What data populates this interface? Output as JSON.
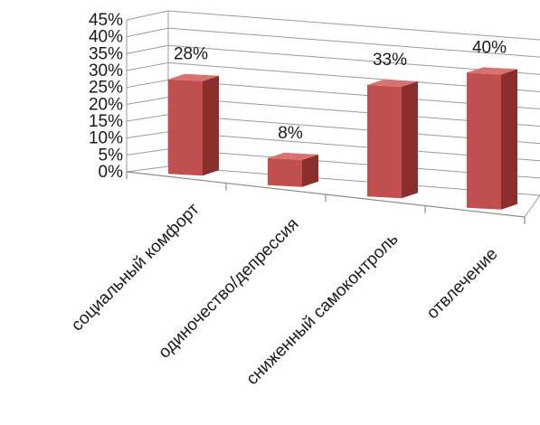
{
  "chart_data": {
    "type": "bar",
    "title": "",
    "xlabel": "",
    "ylabel": "",
    "categories": [
      "социальный комфорт",
      "одиночество/депрессия",
      "сниженный самоконтроль",
      "отвлечение"
    ],
    "values": [
      28,
      8,
      33,
      40
    ],
    "value_labels": [
      "28%",
      "8%",
      "33%",
      "40%"
    ],
    "ylim": [
      0,
      45
    ],
    "y_ticks": [
      0,
      5,
      10,
      15,
      20,
      25,
      30,
      35,
      40,
      45
    ],
    "y_tick_labels": [
      "0%",
      "5%",
      "10%",
      "15%",
      "20%",
      "25%",
      "30%",
      "35%",
      "40%",
      "45%"
    ],
    "grid": true,
    "legend": "none",
    "style": "3d-perspective",
    "colors": {
      "bar_front": "#c0504d",
      "bar_side": "#8c2f2c",
      "bar_top": "#d9726f"
    }
  }
}
